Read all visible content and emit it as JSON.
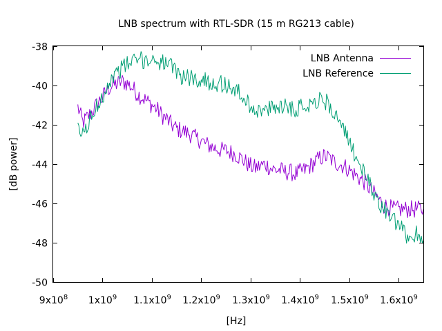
{
  "chart_data": {
    "type": "line",
    "title": "LNB spectrum with RTL-SDR (15 m RG213 cable)",
    "xlabel": "[Hz]",
    "ylabel": "[dB power]",
    "xlim": [
      900000000,
      1650000000
    ],
    "ylim": [
      -50,
      -38
    ],
    "x_ticks": [
      {
        "value": 900000000,
        "mant": "9x10",
        "exp": "8"
      },
      {
        "value": 1000000000,
        "mant": "1x10",
        "exp": "9"
      },
      {
        "value": 1100000000,
        "mant": "1.1x10",
        "exp": "9"
      },
      {
        "value": 1200000000,
        "mant": "1.2x10",
        "exp": "9"
      },
      {
        "value": 1300000000,
        "mant": "1.3x10",
        "exp": "9"
      },
      {
        "value": 1400000000,
        "mant": "1.4x10",
        "exp": "9"
      },
      {
        "value": 1500000000,
        "mant": "1.5x10",
        "exp": "9"
      },
      {
        "value": 1600000000,
        "mant": "1.6x10",
        "exp": "9"
      }
    ],
    "y_ticks": [
      -38,
      -40,
      -42,
      -44,
      -46,
      -48,
      -50
    ],
    "grid": false,
    "legend": "top-right",
    "series": [
      {
        "name": "LNB Antenna",
        "color": "#9400d3",
        "points": [
          [
            950000000,
            -41.1
          ],
          [
            960000000,
            -41.9
          ],
          [
            970000000,
            -41.6
          ],
          [
            980000000,
            -41.3
          ],
          [
            990000000,
            -40.9
          ],
          [
            1000000000,
            -40.6
          ],
          [
            1010000000,
            -40.2
          ],
          [
            1020000000,
            -40.0
          ],
          [
            1030000000,
            -39.9
          ],
          [
            1040000000,
            -39.8
          ],
          [
            1050000000,
            -39.9
          ],
          [
            1060000000,
            -40.1
          ],
          [
            1070000000,
            -40.4
          ],
          [
            1080000000,
            -40.6
          ],
          [
            1090000000,
            -40.8
          ],
          [
            1100000000,
            -41.0
          ],
          [
            1110000000,
            -41.2
          ],
          [
            1120000000,
            -41.5
          ],
          [
            1130000000,
            -41.7
          ],
          [
            1140000000,
            -42.0
          ],
          [
            1150000000,
            -42.2
          ],
          [
            1160000000,
            -42.3
          ],
          [
            1170000000,
            -42.4
          ],
          [
            1180000000,
            -42.5
          ],
          [
            1190000000,
            -42.7
          ],
          [
            1200000000,
            -42.8
          ],
          [
            1210000000,
            -43.0
          ],
          [
            1220000000,
            -43.1
          ],
          [
            1230000000,
            -43.2
          ],
          [
            1240000000,
            -43.3
          ],
          [
            1250000000,
            -43.3
          ],
          [
            1260000000,
            -43.4
          ],
          [
            1270000000,
            -43.5
          ],
          [
            1280000000,
            -43.7
          ],
          [
            1290000000,
            -43.9
          ],
          [
            1300000000,
            -44.1
          ],
          [
            1310000000,
            -44.2
          ],
          [
            1320000000,
            -44.1
          ],
          [
            1330000000,
            -44.0
          ],
          [
            1340000000,
            -44.2
          ],
          [
            1350000000,
            -44.3
          ],
          [
            1360000000,
            -44.3
          ],
          [
            1370000000,
            -44.4
          ],
          [
            1380000000,
            -44.4
          ],
          [
            1390000000,
            -44.5
          ],
          [
            1400000000,
            -44.4
          ],
          [
            1410000000,
            -44.3
          ],
          [
            1420000000,
            -44.1
          ],
          [
            1430000000,
            -43.9
          ],
          [
            1440000000,
            -43.7
          ],
          [
            1450000000,
            -43.6
          ],
          [
            1460000000,
            -43.7
          ],
          [
            1470000000,
            -43.9
          ],
          [
            1480000000,
            -44.0
          ],
          [
            1490000000,
            -44.1
          ],
          [
            1500000000,
            -44.3
          ],
          [
            1510000000,
            -44.5
          ],
          [
            1520000000,
            -44.7
          ],
          [
            1530000000,
            -44.9
          ],
          [
            1540000000,
            -45.2
          ],
          [
            1550000000,
            -45.5
          ],
          [
            1560000000,
            -45.8
          ],
          [
            1570000000,
            -46.1
          ],
          [
            1580000000,
            -46.2
          ],
          [
            1590000000,
            -46.3
          ],
          [
            1600000000,
            -46.3
          ],
          [
            1610000000,
            -46.3
          ],
          [
            1620000000,
            -46.3
          ],
          [
            1630000000,
            -46.3
          ],
          [
            1640000000,
            -46.3
          ],
          [
            1650000000,
            -46.3
          ]
        ]
      },
      {
        "name": "LNB Reference",
        "color": "#009e73",
        "points": [
          [
            950000000,
            -42.3
          ],
          [
            960000000,
            -42.5
          ],
          [
            970000000,
            -42.0
          ],
          [
            980000000,
            -41.5
          ],
          [
            990000000,
            -41.0
          ],
          [
            1000000000,
            -40.5
          ],
          [
            1010000000,
            -40.0
          ],
          [
            1020000000,
            -39.6
          ],
          [
            1030000000,
            -39.3
          ],
          [
            1040000000,
            -39.1
          ],
          [
            1050000000,
            -38.9
          ],
          [
            1060000000,
            -38.8
          ],
          [
            1070000000,
            -38.7
          ],
          [
            1080000000,
            -38.7
          ],
          [
            1090000000,
            -38.7
          ],
          [
            1100000000,
            -38.7
          ],
          [
            1110000000,
            -38.7
          ],
          [
            1120000000,
            -38.8
          ],
          [
            1130000000,
            -38.9
          ],
          [
            1140000000,
            -39.1
          ],
          [
            1150000000,
            -39.3
          ],
          [
            1160000000,
            -39.5
          ],
          [
            1170000000,
            -39.6
          ],
          [
            1180000000,
            -39.6
          ],
          [
            1190000000,
            -39.7
          ],
          [
            1200000000,
            -39.7
          ],
          [
            1210000000,
            -39.8
          ],
          [
            1220000000,
            -39.8
          ],
          [
            1230000000,
            -39.9
          ],
          [
            1240000000,
            -39.9
          ],
          [
            1250000000,
            -40.0
          ],
          [
            1260000000,
            -40.1
          ],
          [
            1270000000,
            -40.2
          ],
          [
            1280000000,
            -40.5
          ],
          [
            1290000000,
            -40.8
          ],
          [
            1300000000,
            -41.0
          ],
          [
            1310000000,
            -41.2
          ],
          [
            1320000000,
            -41.3
          ],
          [
            1330000000,
            -41.3
          ],
          [
            1340000000,
            -41.2
          ],
          [
            1350000000,
            -41.1
          ],
          [
            1360000000,
            -41.0
          ],
          [
            1370000000,
            -41.0
          ],
          [
            1380000000,
            -41.1
          ],
          [
            1390000000,
            -41.2
          ],
          [
            1400000000,
            -41.1
          ],
          [
            1410000000,
            -41.0
          ],
          [
            1420000000,
            -40.9
          ],
          [
            1430000000,
            -40.8
          ],
          [
            1440000000,
            -40.7
          ],
          [
            1450000000,
            -40.8
          ],
          [
            1460000000,
            -41.0
          ],
          [
            1470000000,
            -41.4
          ],
          [
            1480000000,
            -41.9
          ],
          [
            1490000000,
            -42.4
          ],
          [
            1500000000,
            -42.9
          ],
          [
            1510000000,
            -43.4
          ],
          [
            1520000000,
            -43.9
          ],
          [
            1530000000,
            -44.5
          ],
          [
            1540000000,
            -45.0
          ],
          [
            1550000000,
            -45.5
          ],
          [
            1560000000,
            -45.9
          ],
          [
            1570000000,
            -46.3
          ],
          [
            1580000000,
            -46.6
          ],
          [
            1590000000,
            -46.9
          ],
          [
            1600000000,
            -47.2
          ],
          [
            1610000000,
            -47.4
          ],
          [
            1620000000,
            -47.8
          ],
          [
            1630000000,
            -47.6
          ],
          [
            1640000000,
            -47.5
          ],
          [
            1650000000,
            -47.9
          ]
        ]
      }
    ]
  }
}
